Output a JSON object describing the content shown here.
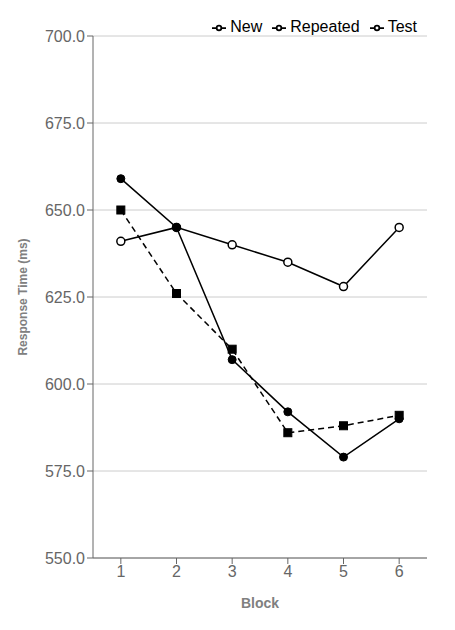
{
  "chart_data": {
    "type": "line",
    "x": [
      1,
      2,
      3,
      4,
      5,
      6
    ],
    "series": [
      {
        "name": "Repeated",
        "color": "#000000",
        "marker": "square",
        "line_style": "dashed",
        "values": [
          650,
          626,
          610,
          586,
          588,
          591
        ]
      },
      {
        "name": "New",
        "color": "#000000",
        "marker": "open_circle",
        "line_style": "solid",
        "values": [
          641,
          645,
          640,
          635,
          628,
          645
        ]
      },
      {
        "name": "Test",
        "color": "#000000",
        "marker": "circle",
        "line_style": "solid",
        "values": [
          659,
          645,
          607,
          592,
          579,
          590
        ]
      }
    ],
    "xlabel": "Block",
    "ylabel": "Response Time (ms)",
    "xlim": [
      0.5,
      6.5
    ],
    "xticks": [
      1,
      2,
      3,
      4,
      5,
      6
    ],
    "ylim": [
      550,
      700
    ],
    "yticks": [
      {
        "value": 550,
        "label": "550.0"
      },
      {
        "value": 575,
        "label": "575.0"
      },
      {
        "value": 600,
        "label": "600.0"
      },
      {
        "value": 625,
        "label": "625.0"
      },
      {
        "value": 650,
        "label": "650.0"
      },
      {
        "value": 675,
        "label": "675.0"
      },
      {
        "value": 700,
        "label": "700.0"
      }
    ],
    "grid": true,
    "legend": "upper right"
  }
}
